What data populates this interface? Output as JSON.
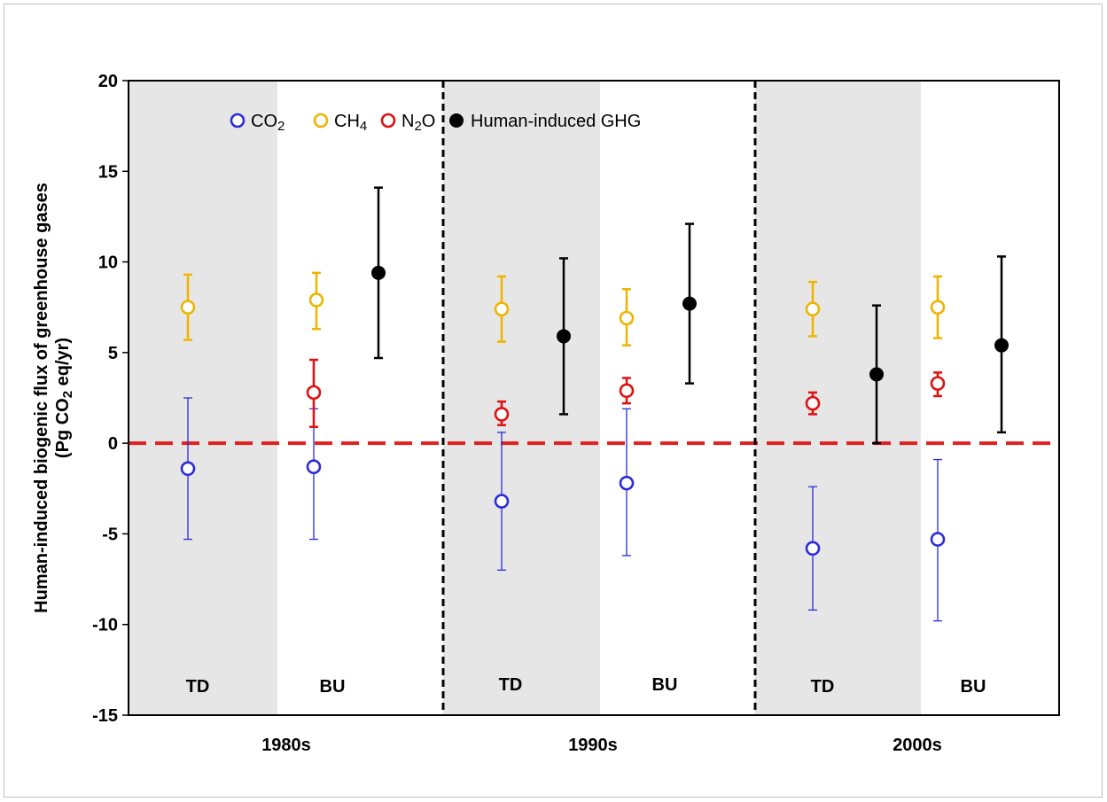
{
  "chart_data": {
    "type": "scatter",
    "title": "",
    "ylabel_line1": "Human-induced biogenic flux of greenhouse gases",
    "ylabel_line2_pre": "(Pg CO",
    "ylabel_line2_sub": "2",
    "ylabel_line2_post": " eq/yr)",
    "ylim": [
      -15,
      20
    ],
    "yticks": [
      "-15",
      "-10",
      "-5",
      "0",
      "5",
      "10",
      "15",
      "20"
    ],
    "ytick_values": [
      -15,
      -10,
      -5,
      0,
      5,
      10,
      15,
      20
    ],
    "zero_line": 0,
    "decades": [
      {
        "label": "1980s",
        "panels": [
          "TD",
          "BU"
        ]
      },
      {
        "label": "1990s",
        "panels": [
          "TD",
          "BU"
        ]
      },
      {
        "label": "2000s",
        "panels": [
          "TD",
          "BU"
        ]
      }
    ],
    "legend": [
      {
        "key": "CO2",
        "pre": "CO",
        "sub": "2",
        "post": ""
      },
      {
        "key": "CH4",
        "pre": "CH",
        "sub": "4",
        "post": ""
      },
      {
        "key": "N2O",
        "pre": "N",
        "sub": "2",
        "post": "O"
      },
      {
        "key": "GHG",
        "pre": "Human-induced GHG",
        "sub": "",
        "post": ""
      }
    ],
    "colors": {
      "CO2": "#2b2bd9",
      "CH4": "#f0b400",
      "N2O": "#e01010",
      "GHG": "#000000",
      "shade": "#e6e6e6",
      "zero": "#e02020"
    },
    "series": [
      {
        "name": "CO2",
        "points": [
          {
            "decade": 0,
            "panel": "TD",
            "value": -1.4,
            "low": -5.3,
            "high": 2.5
          },
          {
            "decade": 0,
            "panel": "BU",
            "value": -1.3,
            "low": -5.3,
            "high": 1.9
          },
          {
            "decade": 1,
            "panel": "TD",
            "value": -3.2,
            "low": -7.0,
            "high": 0.6
          },
          {
            "decade": 1,
            "panel": "BU",
            "value": -2.2,
            "low": -6.2,
            "high": 1.9
          },
          {
            "decade": 2,
            "panel": "TD",
            "value": -5.8,
            "low": -9.2,
            "high": -2.4
          },
          {
            "decade": 2,
            "panel": "BU",
            "value": -5.3,
            "low": -9.8,
            "high": -0.9
          }
        ]
      },
      {
        "name": "CH4",
        "points": [
          {
            "decade": 0,
            "panel": "TD",
            "value": 7.5,
            "low": 5.7,
            "high": 9.3
          },
          {
            "decade": 0,
            "panel": "BU",
            "value": 7.9,
            "low": 6.3,
            "high": 9.4
          },
          {
            "decade": 1,
            "panel": "TD",
            "value": 7.4,
            "low": 5.6,
            "high": 9.2
          },
          {
            "decade": 1,
            "panel": "BU",
            "value": 6.9,
            "low": 5.4,
            "high": 8.5
          },
          {
            "decade": 2,
            "panel": "TD",
            "value": 7.4,
            "low": 5.9,
            "high": 8.9
          },
          {
            "decade": 2,
            "panel": "BU",
            "value": 7.5,
            "low": 5.8,
            "high": 9.2
          }
        ]
      },
      {
        "name": "N2O",
        "points": [
          {
            "decade": 0,
            "panel": "BU",
            "value": 2.8,
            "low": 0.9,
            "high": 4.6
          },
          {
            "decade": 1,
            "panel": "TD",
            "value": 1.6,
            "low": 1.0,
            "high": 2.3
          },
          {
            "decade": 1,
            "panel": "BU",
            "value": 2.9,
            "low": 2.2,
            "high": 3.6
          },
          {
            "decade": 2,
            "panel": "TD",
            "value": 2.2,
            "low": 1.6,
            "high": 2.8
          },
          {
            "decade": 2,
            "panel": "BU",
            "value": 3.3,
            "low": 2.6,
            "high": 3.9
          }
        ]
      },
      {
        "name": "GHG",
        "points": [
          {
            "decade": 0,
            "panel": "BU",
            "value": 9.4,
            "low": 4.7,
            "high": 14.1
          },
          {
            "decade": 1,
            "panel": "TD",
            "value": 5.9,
            "low": 1.6,
            "high": 10.2
          },
          {
            "decade": 1,
            "panel": "BU",
            "value": 7.7,
            "low": 3.3,
            "high": 12.1
          },
          {
            "decade": 2,
            "panel": "TD",
            "value": 3.8,
            "low": 0.0,
            "high": 7.6
          },
          {
            "decade": 2,
            "panel": "BU",
            "value": 5.4,
            "low": 0.6,
            "high": 10.3
          }
        ]
      }
    ]
  }
}
